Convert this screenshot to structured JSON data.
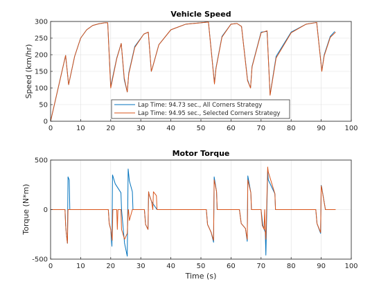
{
  "chart_data": [
    {
      "type": "line",
      "title": "Vehicle Speed",
      "xlabel": "",
      "ylabel": "Speed (km/hr)",
      "xlim": [
        0,
        100
      ],
      "ylim": [
        0,
        300
      ],
      "xticks": [
        0,
        10,
        20,
        30,
        40,
        50,
        60,
        70,
        80,
        90,
        100
      ],
      "yticks": [
        0,
        50,
        100,
        150,
        200,
        250,
        300
      ],
      "grid": true,
      "legend_position": "bottom-center",
      "series": [
        {
          "name": "Lap Time: 94.73 sec., All Corners Strategy",
          "color": "#0072BD",
          "x": [
            0,
            5,
            6,
            8,
            10,
            12,
            14,
            16,
            18,
            19,
            20,
            22,
            23.5,
            24.5,
            25.5,
            26,
            28,
            31,
            32.5,
            33.5,
            34,
            36,
            40,
            45,
            50,
            52,
            52.5,
            54.5,
            55,
            57,
            60,
            62,
            63.5,
            65.5,
            66.5,
            67,
            70,
            72,
            73,
            75,
            80,
            85,
            88.5,
            90.2,
            91,
            93,
            94.5
          ],
          "y": [
            0,
            198,
            110,
            195,
            250,
            275,
            288,
            293,
            296,
            296,
            105,
            190,
            234,
            125,
            88,
            145,
            225,
            262,
            268,
            150,
            165,
            230,
            275,
            292,
            296,
            298,
            298,
            115,
            160,
            255,
            292,
            294,
            285,
            125,
            100,
            165,
            268,
            270,
            80,
            195,
            268,
            292,
            297,
            152,
            200,
            255,
            270
          ]
        },
        {
          "name": "Lap Time: 94.95 sec., Selected Corners Strategy",
          "color": "#D95319",
          "x": [
            0,
            5,
            6,
            8,
            10,
            12,
            14,
            16,
            18,
            19,
            20,
            22,
            23.5,
            24.5,
            25.5,
            26,
            28,
            31,
            32.5,
            33.5,
            34,
            36,
            40,
            45,
            50,
            52,
            52.5,
            54.5,
            55,
            57,
            60,
            62,
            63.5,
            65.5,
            66.5,
            67,
            70,
            72,
            73,
            75,
            80,
            85,
            88.5,
            90.2,
            91,
            93,
            94.8
          ],
          "y": [
            0,
            198,
            110,
            195,
            250,
            275,
            288,
            293,
            296,
            296,
            100,
            188,
            234,
            130,
            88,
            142,
            222,
            262,
            268,
            150,
            165,
            230,
            275,
            292,
            296,
            298,
            298,
            112,
            158,
            253,
            292,
            294,
            285,
            122,
            100,
            163,
            266,
            272,
            78,
            190,
            266,
            292,
            297,
            150,
            197,
            252,
            268
          ]
        }
      ]
    },
    {
      "type": "line",
      "title": "Motor Torque",
      "xlabel": "Time (s)",
      "ylabel": "Torque (N*m)",
      "xlim": [
        0,
        100
      ],
      "ylim": [
        -500,
        500
      ],
      "xticks": [
        0,
        10,
        20,
        30,
        40,
        50,
        60,
        70,
        80,
        90,
        100
      ],
      "yticks": [
        -500,
        0,
        500
      ],
      "grid": true,
      "series": [
        {
          "name": "Lap Time: 94.73 sec., All Corners Strategy",
          "color": "#0072BD",
          "x": [
            0,
            4.8,
            5,
            5.2,
            5.6,
            5.8,
            6.2,
            6.4,
            19.2,
            19.5,
            20,
            20.4,
            20.6,
            21.5,
            23.4,
            23.6,
            24.6,
            25.5,
            25.8,
            26.2,
            27.2,
            27.4,
            31.2,
            31.6,
            32.4,
            32.6,
            32.8,
            33.6,
            35.4,
            35.6,
            51.8,
            52.2,
            53.4,
            54.2,
            54.4,
            55.2,
            55.4,
            62.8,
            63.4,
            64.8,
            65.4,
            65.6,
            66.6,
            66.8,
            70,
            70.6,
            71.4,
            71.6,
            72.2,
            72.4,
            74.6,
            74.8,
            88.2,
            88.6,
            89.8,
            90,
            90.2,
            91.4,
            91.6,
            94.6
          ],
          "y": [
            0,
            0,
            -150,
            -230,
            -340,
            330,
            300,
            0,
            0,
            -140,
            -200,
            -370,
            350,
            260,
            170,
            0,
            -340,
            -470,
            410,
            290,
            180,
            0,
            0,
            -150,
            -200,
            180,
            150,
            80,
            0,
            0,
            0,
            -150,
            -230,
            -330,
            330,
            180,
            0,
            0,
            -140,
            -190,
            -320,
            340,
            170,
            0,
            0,
            -160,
            -230,
            -460,
            390,
            300,
            160,
            0,
            0,
            -140,
            -240,
            245,
            220,
            0,
            0,
            0
          ]
        },
        {
          "name": "Lap Time: 94.95 sec., Selected Corners Strategy",
          "color": "#D95319",
          "x": [
            0,
            4.8,
            5,
            5.2,
            5.6,
            5.8,
            19.2,
            19.5,
            20,
            20.5,
            20.7,
            22,
            22.2,
            22.4,
            23.4,
            23.6,
            24.6,
            25.5,
            25.8,
            25.9,
            26.2,
            27.2,
            27.4,
            31.2,
            31.6,
            32.4,
            32.6,
            32.8,
            33.6,
            34,
            34.2,
            35.2,
            35.4,
            51.8,
            52.2,
            53.4,
            54.2,
            54.4,
            55.2,
            55.4,
            62.8,
            63.4,
            64.8,
            65.4,
            65.6,
            66.6,
            66.8,
            70,
            70.4,
            71,
            71.2,
            71.4,
            71.6,
            72.2,
            72.4,
            74.6,
            74.8,
            88.2,
            88.6,
            89.8,
            90,
            90.2,
            91.4,
            91.6,
            94.8
          ],
          "y": [
            0,
            0,
            -150,
            -230,
            -340,
            0,
            0,
            -140,
            -200,
            -310,
            0,
            0,
            -200,
            0,
            0,
            -200,
            -300,
            -240,
            0,
            0,
            -110,
            0,
            0,
            0,
            -150,
            -200,
            180,
            150,
            80,
            0,
            180,
            140,
            0,
            0,
            -150,
            -230,
            -310,
            300,
            180,
            0,
            0,
            -140,
            -190,
            -300,
            300,
            170,
            0,
            0,
            -160,
            -200,
            0,
            -220,
            -300,
            430,
            380,
            160,
            0,
            0,
            -140,
            -230,
            240,
            210,
            0,
            0,
            0
          ]
        }
      ]
    }
  ]
}
